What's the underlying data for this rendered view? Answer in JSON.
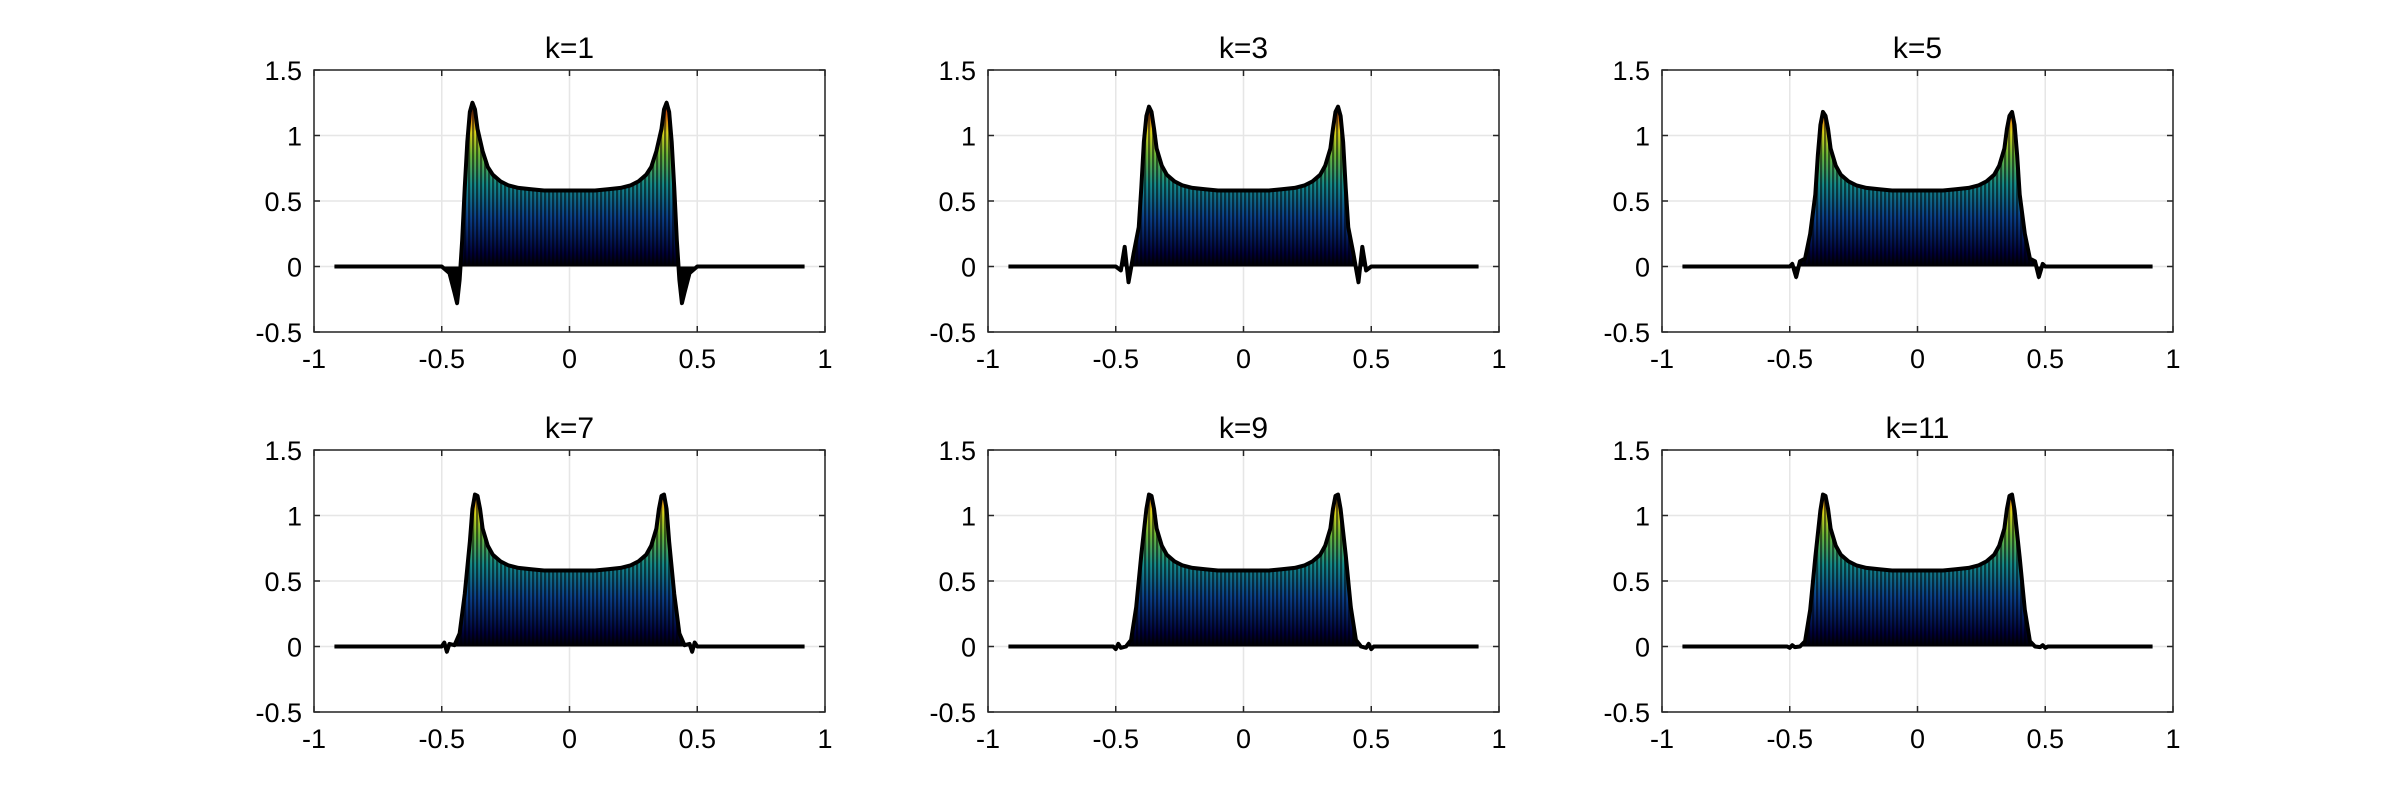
{
  "figure": {
    "background": "#ffffff"
  },
  "chart_data": [
    {
      "type": "area",
      "title": "k=1",
      "xlim": [
        -1,
        1
      ],
      "ylim": [
        -0.5,
        1.5
      ],
      "xticks": [
        -1,
        -0.5,
        0,
        0.5,
        1
      ],
      "xtick_labels": [
        "-1",
        "-0.5",
        "0",
        "0.5",
        "1"
      ],
      "yticks": [
        -0.5,
        0,
        0.5,
        1,
        1.5
      ],
      "ytick_labels": [
        "-0.5",
        "0",
        "0.5",
        "1",
        "1.5"
      ],
      "grid": true,
      "colormap": "jet",
      "series": [
        {
          "x": [
            -0.92,
            -0.5,
            -0.47,
            -0.45,
            -0.44,
            -0.43,
            -0.42,
            -0.41,
            -0.4,
            -0.39,
            -0.38,
            -0.37,
            -0.36,
            -0.34,
            -0.32,
            -0.3,
            -0.27,
            -0.24,
            -0.2,
            -0.15,
            -0.1,
            0,
            0.1,
            0.15,
            0.2,
            0.24,
            0.27,
            0.3,
            0.32,
            0.34,
            0.36,
            0.37,
            0.38,
            0.39,
            0.4,
            0.41,
            0.42,
            0.43,
            0.44,
            0.45,
            0.47,
            0.5,
            0.92
          ],
          "y": [
            0,
            0,
            -0.05,
            -0.2,
            -0.28,
            -0.1,
            0.2,
            0.6,
            0.95,
            1.18,
            1.25,
            1.2,
            1.05,
            0.88,
            0.76,
            0.7,
            0.65,
            0.62,
            0.6,
            0.59,
            0.58,
            0.58,
            0.58,
            0.59,
            0.6,
            0.62,
            0.65,
            0.7,
            0.76,
            0.88,
            1.05,
            1.2,
            1.25,
            1.18,
            0.95,
            0.6,
            0.2,
            -0.1,
            -0.28,
            -0.2,
            -0.05,
            0,
            0
          ]
        }
      ]
    },
    {
      "type": "area",
      "title": "k=3",
      "xlim": [
        -1,
        1
      ],
      "ylim": [
        -0.5,
        1.5
      ],
      "xticks": [
        -1,
        -0.5,
        0,
        0.5,
        1
      ],
      "xtick_labels": [
        "-1",
        "-0.5",
        "0",
        "0.5",
        "1"
      ],
      "yticks": [
        -0.5,
        0,
        0.5,
        1,
        1.5
      ],
      "ytick_labels": [
        "-0.5",
        "0",
        "0.5",
        "1",
        "1.5"
      ],
      "grid": true,
      "colormap": "jet",
      "series": [
        {
          "x": [
            -0.92,
            -0.5,
            -0.48,
            -0.465,
            -0.45,
            -0.43,
            -0.41,
            -0.4,
            -0.39,
            -0.38,
            -0.37,
            -0.36,
            -0.35,
            -0.34,
            -0.32,
            -0.3,
            -0.27,
            -0.24,
            -0.2,
            -0.15,
            -0.1,
            0,
            0.1,
            0.15,
            0.2,
            0.24,
            0.27,
            0.3,
            0.32,
            0.34,
            0.35,
            0.36,
            0.37,
            0.38,
            0.39,
            0.4,
            0.41,
            0.43,
            0.45,
            0.465,
            0.48,
            0.5,
            0.92
          ],
          "y": [
            0,
            0,
            -0.03,
            0.15,
            -0.12,
            0.1,
            0.3,
            0.6,
            0.95,
            1.15,
            1.22,
            1.18,
            1.05,
            0.9,
            0.77,
            0.7,
            0.65,
            0.62,
            0.6,
            0.59,
            0.58,
            0.58,
            0.58,
            0.59,
            0.6,
            0.62,
            0.65,
            0.7,
            0.77,
            0.9,
            1.05,
            1.18,
            1.22,
            1.15,
            0.95,
            0.6,
            0.3,
            0.1,
            -0.12,
            0.15,
            -0.03,
            0,
            0
          ]
        }
      ]
    },
    {
      "type": "area",
      "title": "k=5",
      "xlim": [
        -1,
        1
      ],
      "ylim": [
        -0.5,
        1.5
      ],
      "xticks": [
        -1,
        -0.5,
        0,
        0.5,
        1
      ],
      "xtick_labels": [
        "-1",
        "-0.5",
        "0",
        "0.5",
        "1"
      ],
      "yticks": [
        -0.5,
        0,
        0.5,
        1,
        1.5
      ],
      "ytick_labels": [
        "-0.5",
        "0",
        "0.5",
        "1",
        "1.5"
      ],
      "grid": true,
      "colormap": "jet",
      "series": [
        {
          "x": [
            -0.92,
            -0.5,
            -0.49,
            -0.475,
            -0.46,
            -0.44,
            -0.42,
            -0.4,
            -0.39,
            -0.38,
            -0.37,
            -0.36,
            -0.35,
            -0.34,
            -0.32,
            -0.3,
            -0.27,
            -0.24,
            -0.2,
            -0.15,
            -0.1,
            0,
            0.1,
            0.15,
            0.2,
            0.24,
            0.27,
            0.3,
            0.32,
            0.34,
            0.35,
            0.36,
            0.37,
            0.38,
            0.39,
            0.4,
            0.42,
            0.44,
            0.46,
            0.475,
            0.49,
            0.5,
            0.92
          ],
          "y": [
            0,
            0,
            0.02,
            -0.08,
            0.04,
            0.06,
            0.25,
            0.55,
            0.85,
            1.08,
            1.18,
            1.15,
            1.05,
            0.9,
            0.77,
            0.7,
            0.65,
            0.62,
            0.6,
            0.59,
            0.58,
            0.58,
            0.58,
            0.59,
            0.6,
            0.62,
            0.65,
            0.7,
            0.77,
            0.9,
            1.05,
            1.15,
            1.18,
            1.08,
            0.85,
            0.55,
            0.25,
            0.06,
            0.04,
            -0.08,
            0.02,
            0,
            0
          ]
        }
      ]
    },
    {
      "type": "area",
      "title": "k=7",
      "xlim": [
        -1,
        1
      ],
      "ylim": [
        -0.5,
        1.5
      ],
      "xticks": [
        -1,
        -0.5,
        0,
        0.5,
        1
      ],
      "xtick_labels": [
        "-1",
        "-0.5",
        "0",
        "0.5",
        "1"
      ],
      "yticks": [
        -0.5,
        0,
        0.5,
        1,
        1.5
      ],
      "ytick_labels": [
        "-0.5",
        "0",
        "0.5",
        "1",
        "1.5"
      ],
      "grid": true,
      "colormap": "jet",
      "series": [
        {
          "x": [
            -0.92,
            -0.5,
            -0.49,
            -0.48,
            -0.47,
            -0.45,
            -0.43,
            -0.41,
            -0.39,
            -0.38,
            -0.37,
            -0.36,
            -0.35,
            -0.34,
            -0.32,
            -0.3,
            -0.27,
            -0.24,
            -0.2,
            -0.15,
            -0.1,
            0,
            0.1,
            0.15,
            0.2,
            0.24,
            0.27,
            0.3,
            0.32,
            0.34,
            0.35,
            0.36,
            0.37,
            0.38,
            0.39,
            0.41,
            0.43,
            0.45,
            0.47,
            0.48,
            0.49,
            0.5,
            0.92
          ],
          "y": [
            0,
            0,
            0.03,
            -0.04,
            0.02,
            0.01,
            0.1,
            0.4,
            0.8,
            1.05,
            1.16,
            1.15,
            1.05,
            0.9,
            0.77,
            0.7,
            0.65,
            0.62,
            0.6,
            0.59,
            0.58,
            0.58,
            0.58,
            0.59,
            0.6,
            0.62,
            0.65,
            0.7,
            0.77,
            0.9,
            1.05,
            1.15,
            1.16,
            1.05,
            0.8,
            0.4,
            0.1,
            0.01,
            0.02,
            -0.04,
            0.03,
            0,
            0
          ]
        }
      ]
    },
    {
      "type": "area",
      "title": "k=9",
      "xlim": [
        -1,
        1
      ],
      "ylim": [
        -0.5,
        1.5
      ],
      "xticks": [
        -1,
        -0.5,
        0,
        0.5,
        1
      ],
      "xtick_labels": [
        "-1",
        "-0.5",
        "0",
        "0.5",
        "1"
      ],
      "yticks": [
        -0.5,
        0,
        0.5,
        1,
        1.5
      ],
      "ytick_labels": [
        "-0.5",
        "0",
        "0.5",
        "1",
        "1.5"
      ],
      "grid": true,
      "colormap": "jet",
      "series": [
        {
          "x": [
            -0.92,
            -0.51,
            -0.5,
            -0.49,
            -0.48,
            -0.46,
            -0.44,
            -0.42,
            -0.4,
            -0.38,
            -0.37,
            -0.36,
            -0.35,
            -0.34,
            -0.32,
            -0.3,
            -0.27,
            -0.24,
            -0.2,
            -0.15,
            -0.1,
            0,
            0.1,
            0.15,
            0.2,
            0.24,
            0.27,
            0.3,
            0.32,
            0.34,
            0.35,
            0.36,
            0.37,
            0.38,
            0.4,
            0.42,
            0.44,
            0.46,
            0.48,
            0.49,
            0.5,
            0.51,
            0.92
          ],
          "y": [
            0,
            0,
            -0.02,
            0.02,
            -0.01,
            0,
            0.05,
            0.3,
            0.7,
            1.05,
            1.16,
            1.15,
            1.05,
            0.9,
            0.77,
            0.7,
            0.65,
            0.62,
            0.6,
            0.59,
            0.58,
            0.58,
            0.58,
            0.59,
            0.6,
            0.62,
            0.65,
            0.7,
            0.77,
            0.9,
            1.05,
            1.15,
            1.16,
            1.05,
            0.7,
            0.3,
            0.05,
            0,
            -0.01,
            0.02,
            -0.02,
            0,
            0
          ]
        }
      ]
    },
    {
      "type": "area",
      "title": "k=11",
      "xlim": [
        -1,
        1
      ],
      "ylim": [
        -0.5,
        1.5
      ],
      "xticks": [
        -1,
        -0.5,
        0,
        0.5,
        1
      ],
      "xtick_labels": [
        "-1",
        "-0.5",
        "0",
        "0.5",
        "1"
      ],
      "yticks": [
        -0.5,
        0,
        0.5,
        1,
        1.5
      ],
      "ytick_labels": [
        "-0.5",
        "0",
        "0.5",
        "1",
        "1.5"
      ],
      "grid": true,
      "colormap": "jet",
      "series": [
        {
          "x": [
            -0.92,
            -0.51,
            -0.5,
            -0.49,
            -0.48,
            -0.46,
            -0.44,
            -0.42,
            -0.4,
            -0.38,
            -0.37,
            -0.36,
            -0.35,
            -0.34,
            -0.32,
            -0.3,
            -0.27,
            -0.24,
            -0.2,
            -0.15,
            -0.1,
            0,
            0.1,
            0.15,
            0.2,
            0.24,
            0.27,
            0.3,
            0.32,
            0.34,
            0.35,
            0.36,
            0.37,
            0.38,
            0.4,
            0.42,
            0.44,
            0.46,
            0.48,
            0.49,
            0.5,
            0.51,
            0.92
          ],
          "y": [
            0,
            0,
            -0.01,
            0.01,
            -0.005,
            0,
            0.04,
            0.28,
            0.68,
            1.04,
            1.16,
            1.15,
            1.05,
            0.9,
            0.77,
            0.7,
            0.65,
            0.62,
            0.6,
            0.59,
            0.58,
            0.58,
            0.58,
            0.59,
            0.6,
            0.62,
            0.65,
            0.7,
            0.77,
            0.9,
            1.05,
            1.15,
            1.16,
            1.04,
            0.68,
            0.28,
            0.04,
            0,
            -0.005,
            0.01,
            -0.01,
            0,
            0
          ]
        }
      ]
    }
  ]
}
